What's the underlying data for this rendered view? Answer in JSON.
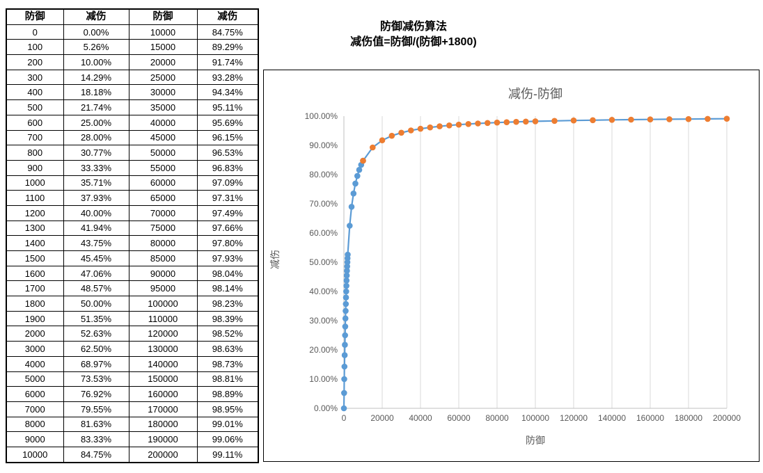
{
  "table": {
    "headers": [
      "防御",
      "减伤",
      "防御",
      "减伤"
    ],
    "rows": [
      [
        "0",
        "0.00%",
        "10000",
        "84.75%"
      ],
      [
        "100",
        "5.26%",
        "15000",
        "89.29%"
      ],
      [
        "200",
        "10.00%",
        "20000",
        "91.74%"
      ],
      [
        "300",
        "14.29%",
        "25000",
        "93.28%"
      ],
      [
        "400",
        "18.18%",
        "30000",
        "94.34%"
      ],
      [
        "500",
        "21.74%",
        "35000",
        "95.11%"
      ],
      [
        "600",
        "25.00%",
        "40000",
        "95.69%"
      ],
      [
        "700",
        "28.00%",
        "45000",
        "96.15%"
      ],
      [
        "800",
        "30.77%",
        "50000",
        "96.53%"
      ],
      [
        "900",
        "33.33%",
        "55000",
        "96.83%"
      ],
      [
        "1000",
        "35.71%",
        "60000",
        "97.09%"
      ],
      [
        "1100",
        "37.93%",
        "65000",
        "97.31%"
      ],
      [
        "1200",
        "40.00%",
        "70000",
        "97.49%"
      ],
      [
        "1300",
        "41.94%",
        "75000",
        "97.66%"
      ],
      [
        "1400",
        "43.75%",
        "80000",
        "97.80%"
      ],
      [
        "1500",
        "45.45%",
        "85000",
        "97.93%"
      ],
      [
        "1600",
        "47.06%",
        "90000",
        "98.04%"
      ],
      [
        "1700",
        "48.57%",
        "95000",
        "98.14%"
      ],
      [
        "1800",
        "50.00%",
        "100000",
        "98.23%"
      ],
      [
        "1900",
        "51.35%",
        "110000",
        "98.39%"
      ],
      [
        "2000",
        "52.63%",
        "120000",
        "98.52%"
      ],
      [
        "3000",
        "62.50%",
        "130000",
        "98.63%"
      ],
      [
        "4000",
        "68.97%",
        "140000",
        "98.73%"
      ],
      [
        "5000",
        "73.53%",
        "150000",
        "98.81%"
      ],
      [
        "6000",
        "76.92%",
        "160000",
        "98.89%"
      ],
      [
        "7000",
        "79.55%",
        "170000",
        "98.95%"
      ],
      [
        "8000",
        "81.63%",
        "180000",
        "99.01%"
      ],
      [
        "9000",
        "83.33%",
        "190000",
        "99.06%"
      ],
      [
        "10000",
        "84.75%",
        "200000",
        "99.11%"
      ]
    ]
  },
  "annotation": {
    "line1": "防御减伤算法",
    "line2": "减伤值=防御/(防御+1800)"
  },
  "chart_data": {
    "type": "line",
    "title": "减伤-防御",
    "xlabel": "防御",
    "ylabel": "减伤",
    "xlim": [
      0,
      200000
    ],
    "ylim": [
      0,
      1
    ],
    "grid": "vertical-only",
    "legend": "none",
    "line_color": "#5B9BD5",
    "gridline_color": "#D9D9D9",
    "axis_color": "#BFBFBF",
    "tick_label_color": "#595959",
    "x_tick_values": [
      0,
      20000,
      40000,
      60000,
      80000,
      100000,
      120000,
      140000,
      160000,
      180000,
      200000
    ],
    "x_tick_labels": [
      "0",
      "20000",
      "40000",
      "60000",
      "80000",
      "100000",
      "120000",
      "140000",
      "160000",
      "180000",
      "200000"
    ],
    "y_tick_values": [
      0,
      0.1,
      0.2,
      0.3,
      0.4,
      0.5,
      0.6,
      0.7,
      0.8,
      0.9,
      1.0
    ],
    "y_tick_labels": [
      "0.00%",
      "10.00%",
      "20.00%",
      "30.00%",
      "40.00%",
      "50.00%",
      "60.00%",
      "70.00%",
      "80.00%",
      "90.00%",
      "100.00%"
    ],
    "series": [
      {
        "name": "series-low-defense",
        "color": "#5B9BD5",
        "x": [
          0,
          100,
          200,
          300,
          400,
          500,
          600,
          700,
          800,
          900,
          1000,
          1100,
          1200,
          1300,
          1400,
          1500,
          1600,
          1700,
          1800,
          1900,
          2000,
          3000,
          4000,
          5000,
          6000,
          7000,
          8000,
          9000,
          10000
        ],
        "y": [
          0,
          0.0526,
          0.1,
          0.1429,
          0.1818,
          0.2174,
          0.25,
          0.28,
          0.3077,
          0.3333,
          0.3571,
          0.3793,
          0.4,
          0.4194,
          0.4375,
          0.4545,
          0.4706,
          0.4857,
          0.5,
          0.5135,
          0.5263,
          0.625,
          0.6897,
          0.7353,
          0.7692,
          0.7955,
          0.8163,
          0.8333,
          0.8475
        ]
      },
      {
        "name": "series-high-defense",
        "color": "#ED7D31",
        "x": [
          10000,
          15000,
          20000,
          25000,
          30000,
          35000,
          40000,
          45000,
          50000,
          55000,
          60000,
          65000,
          70000,
          75000,
          80000,
          85000,
          90000,
          95000,
          100000,
          110000,
          120000,
          130000,
          140000,
          150000,
          160000,
          170000,
          180000,
          190000,
          200000
        ],
        "y": [
          0.8475,
          0.8929,
          0.9174,
          0.9328,
          0.9434,
          0.9511,
          0.9569,
          0.9615,
          0.9653,
          0.9683,
          0.9709,
          0.9731,
          0.9749,
          0.9766,
          0.978,
          0.9793,
          0.9804,
          0.9814,
          0.9823,
          0.9839,
          0.9852,
          0.9863,
          0.9873,
          0.9881,
          0.9889,
          0.9895,
          0.9901,
          0.9906,
          0.9911
        ]
      }
    ]
  }
}
